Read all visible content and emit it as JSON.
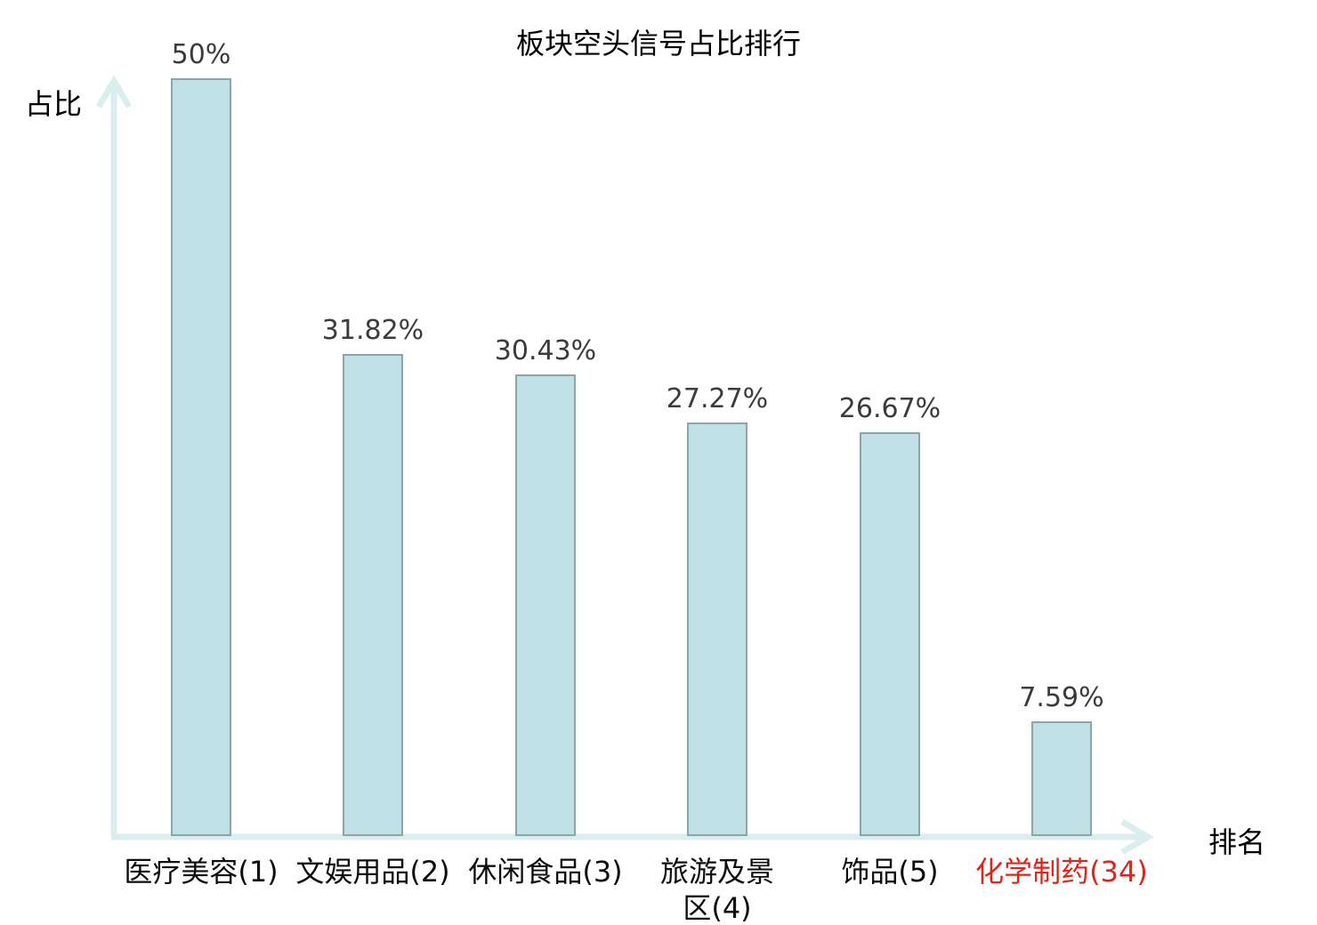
{
  "chart_data": {
    "type": "bar",
    "title": "板块空头信号占比排行",
    "xlabel": "排名",
    "ylabel": "占比",
    "categories": [
      "医疗美容(1)",
      "文娱用品(2)",
      "休闲食品(3)",
      "旅游及景区(4)",
      "饰品(5)",
      "化学制药(34)"
    ],
    "values": [
      50,
      31.82,
      30.43,
      27.27,
      26.67,
      7.59
    ],
    "value_labels": [
      "50%",
      "31.82%",
      "30.43%",
      "27.27%",
      "26.67%",
      "7.59%"
    ],
    "tick_labels_display": [
      "医疗美容(1)",
      "文娱用品(2)",
      "休闲食品(3)",
      "旅游及景\n区(4)",
      "饰品(5)",
      "化学制药(34)"
    ],
    "highlight_index": 5,
    "ylim": [
      0,
      50
    ],
    "grid": false,
    "legend": false,
    "colors": {
      "bar_fill": "#bfe0e4",
      "bar_border": "#8ca5aa",
      "axis": "#daeef0",
      "value_label": "#3b3b3b",
      "tick_label": "#0d0d0d",
      "highlight": "#e02419",
      "background": "#ffffff"
    }
  }
}
